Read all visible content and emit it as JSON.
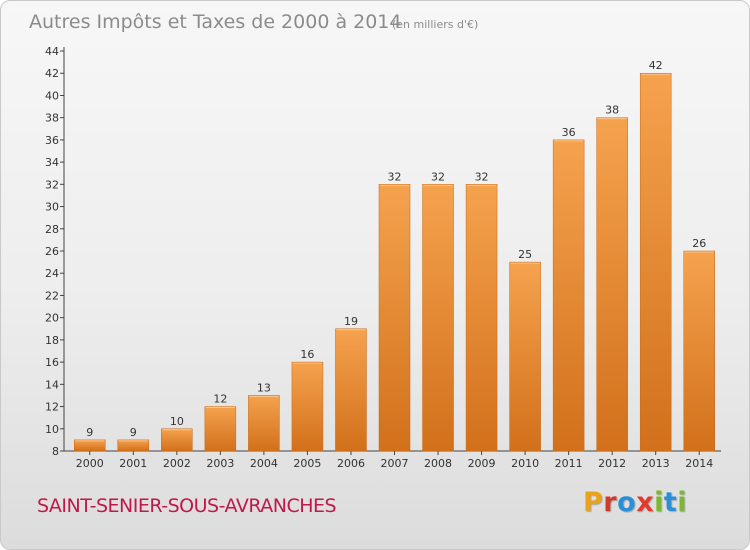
{
  "colors": {
    "bar_light": "#f5a24e",
    "bar_dark": "#d2701b",
    "location": "#c0184b",
    "brand_letters": [
      "#e8a21c",
      "#2a8fd6",
      "#e23a2c",
      "#7cb82f",
      "#2a8fd6",
      "#7cb82f"
    ]
  },
  "header": {
    "title": "Autres Impôts et Taxes de 2000 à 2014",
    "unit": "(en milliers d'€)"
  },
  "location": "SAINT-SENIER-SOUS-AVRANCHES",
  "brand": {
    "letters": [
      "P",
      "r",
      "o",
      "x",
      "i",
      "t",
      "i"
    ],
    "colors": [
      "#e8a21c",
      "#d23b2a",
      "#2a8fd6",
      "#e23a2c",
      "#7cb82f",
      "#2a8fd6",
      "#7cb82f"
    ]
  },
  "chart_data": {
    "type": "bar",
    "title": "Autres Impôts et Taxes de 2000 à 2014",
    "subtitle": "(en milliers d'€)",
    "categories": [
      "2000",
      "2001",
      "2002",
      "2003",
      "2004",
      "2005",
      "2006",
      "2007",
      "2008",
      "2009",
      "2010",
      "2011",
      "2012",
      "2013",
      "2014"
    ],
    "values": [
      9,
      9,
      10,
      12,
      13,
      16,
      19,
      32,
      32,
      32,
      25,
      36,
      38,
      42,
      26
    ],
    "ylim": [
      8,
      44
    ],
    "yticks": [
      8,
      10,
      12,
      14,
      16,
      18,
      20,
      22,
      24,
      26,
      28,
      30,
      32,
      34,
      36,
      38,
      40,
      42,
      44
    ],
    "grid": false,
    "xlabel": "",
    "ylabel": ""
  }
}
